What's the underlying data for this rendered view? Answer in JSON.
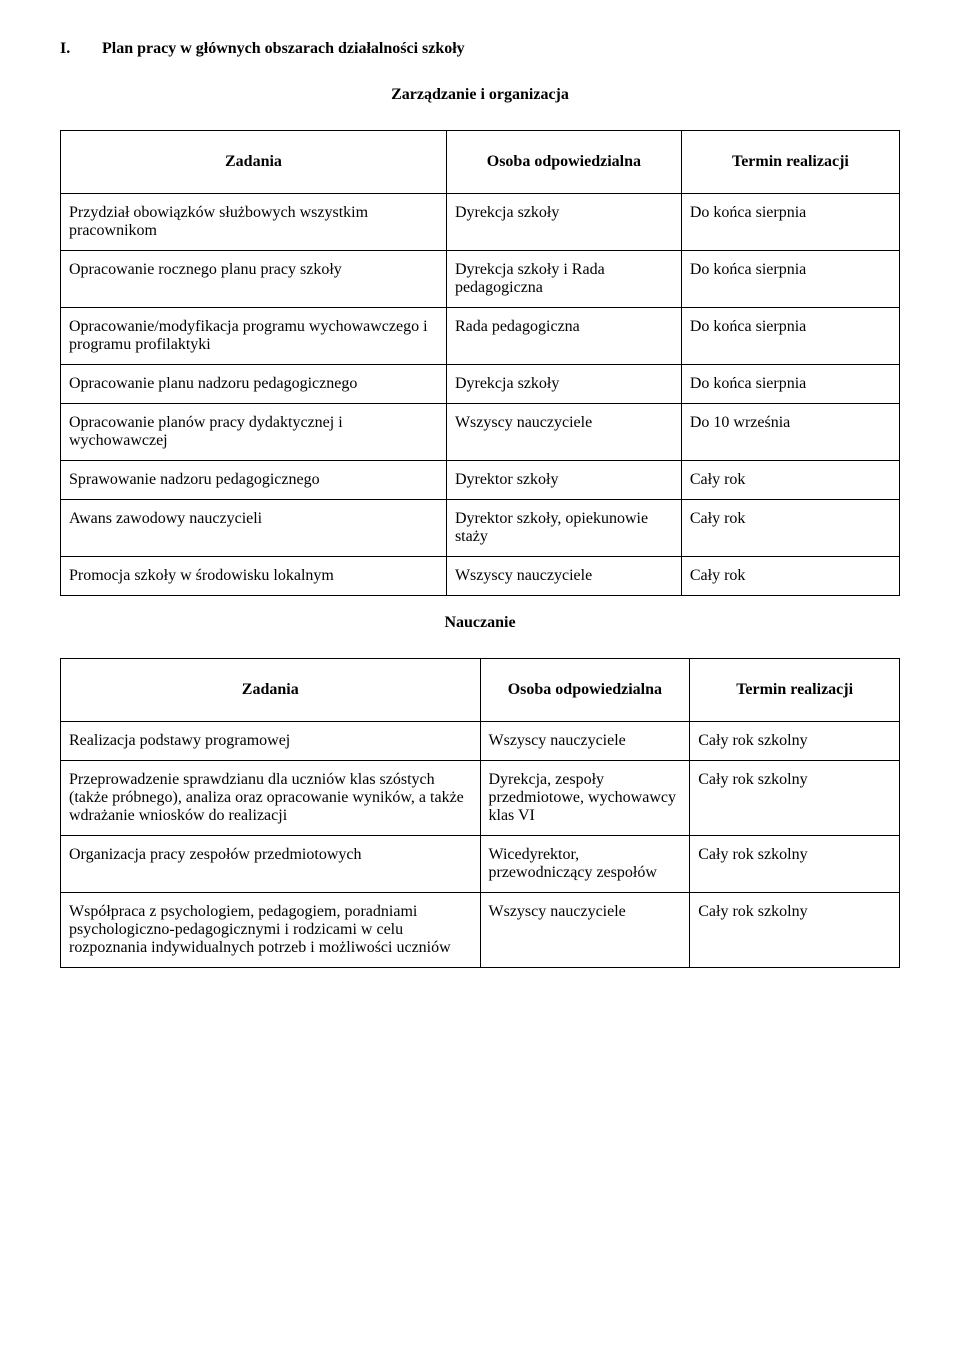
{
  "heading": {
    "number": "I.",
    "text": "Plan pracy w głównych obszarach działalności szkoły"
  },
  "section1": {
    "title": "Zarządzanie i organizacja",
    "header": {
      "tasks": "Zadania",
      "responsible": "Osoba odpowiedzialna",
      "deadline": "Termin realizacji"
    },
    "rows": [
      {
        "task": "Przydział obowiązków służbowych wszystkim pracownikom",
        "resp": "Dyrekcja szkoły",
        "term": "Do końca sierpnia"
      },
      {
        "task": "Opracowanie rocznego planu pracy szkoły",
        "resp": "Dyrekcja szkoły i Rada pedagogiczna",
        "term": "Do końca sierpnia"
      },
      {
        "task": "Opracowanie/modyfikacja programu wychowawczego i programu profilaktyki",
        "resp": "Rada pedagogiczna",
        "term": "Do końca sierpnia"
      },
      {
        "task": "Opracowanie planu nadzoru pedagogicznego",
        "resp": "Dyrekcja szkoły",
        "term": "Do końca sierpnia"
      },
      {
        "task": "Opracowanie planów pracy dydaktycznej i wychowawczej",
        "resp": "Wszyscy nauczyciele",
        "term": "Do 10 września"
      },
      {
        "task": "Sprawowanie nadzoru pedagogicznego",
        "resp": "Dyrektor szkoły",
        "term": "Cały rok"
      },
      {
        "task": "Awans zawodowy nauczycieli",
        "resp": "Dyrektor szkoły, opiekunowie staży",
        "term": "Cały rok"
      },
      {
        "task": "Promocja szkoły w środowisku lokalnym",
        "resp": "Wszyscy nauczyciele",
        "term": "Cały rok"
      }
    ]
  },
  "section2": {
    "title": "Nauczanie",
    "header": {
      "tasks": "Zadania",
      "responsible": "Osoba odpowiedzialna",
      "deadline": "Termin realizacji"
    },
    "rows": [
      {
        "task": "Realizacja podstawy programowej",
        "resp": "Wszyscy nauczyciele",
        "term": "Cały rok szkolny"
      },
      {
        "task": "Przeprowadzenie sprawdzianu dla uczniów klas szóstych (także próbnego), analiza oraz opracowanie wyników, a także wdrażanie wniosków do realizacji",
        "resp": "Dyrekcja, zespoły przedmiotowe, wychowawcy klas VI",
        "term": "Cały rok szkolny"
      },
      {
        "task": "Organizacja pracy zespołów przedmiotowych",
        "resp": "Wicedyrektor, przewodniczący zespołów",
        "term": "Cały rok szkolny"
      },
      {
        "task": "Współpraca z psychologiem, pedagogiem, poradniami psychologiczno-pedagogicznymi i rodzicami w celu rozpoznania indywidualnych potrzeb i możliwości uczniów",
        "resp": "Wszyscy nauczyciele",
        "term": "Cały rok szkolny"
      }
    ]
  }
}
